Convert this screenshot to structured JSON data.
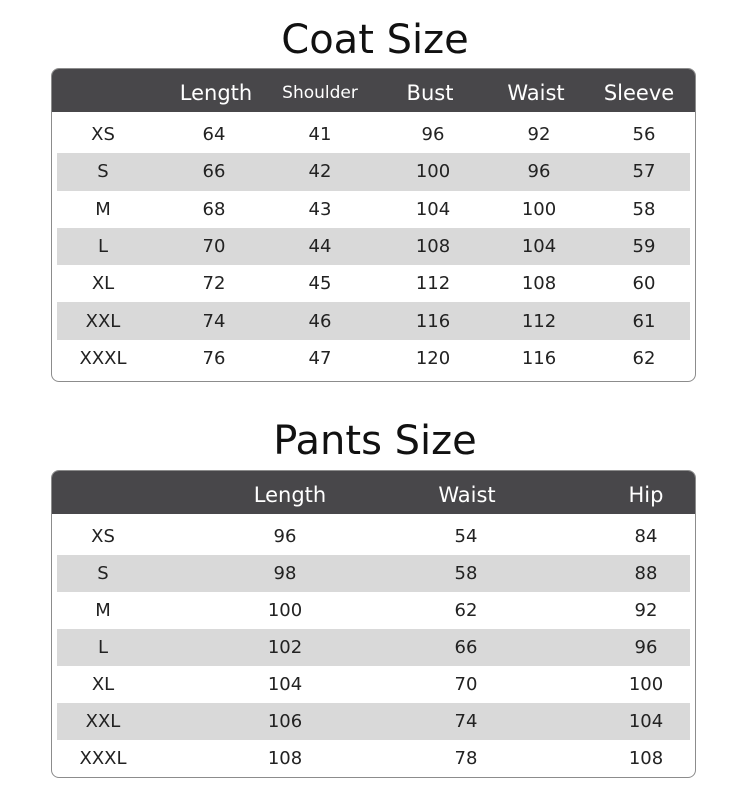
{
  "coat": {
    "title": "Coat Size",
    "headers": [
      "",
      "Length",
      "Shoulder",
      "Bust",
      "Waist",
      "Sleeve"
    ],
    "rows": [
      [
        "XS",
        "64",
        "41",
        "96",
        "92",
        "56"
      ],
      [
        "S",
        "66",
        "42",
        "100",
        "96",
        "57"
      ],
      [
        "M",
        "68",
        "43",
        "104",
        "100",
        "58"
      ],
      [
        "L",
        "70",
        "44",
        "108",
        "104",
        "59"
      ],
      [
        "XL",
        "72",
        "45",
        "112",
        "108",
        "60"
      ],
      [
        "XXL",
        "74",
        "46",
        "116",
        "112",
        "61"
      ],
      [
        "XXXL",
        "76",
        "47",
        "120",
        "116",
        "62"
      ]
    ]
  },
  "pants": {
    "title": "Pants Size",
    "headers": [
      "",
      "Length",
      "Waist",
      "Hip"
    ],
    "rows": [
      [
        "XS",
        "96",
        "54",
        "84"
      ],
      [
        "S",
        "98",
        "58",
        "88"
      ],
      [
        "M",
        "100",
        "62",
        "92"
      ],
      [
        "L",
        "102",
        "66",
        "96"
      ],
      [
        "XL",
        "104",
        "70",
        "100"
      ],
      [
        "XXL",
        "106",
        "74",
        "104"
      ],
      [
        "XXXL",
        "108",
        "78",
        "108"
      ]
    ]
  },
  "colors": {
    "header_bg": "#48474a",
    "stripe": "#d9d9d9"
  }
}
